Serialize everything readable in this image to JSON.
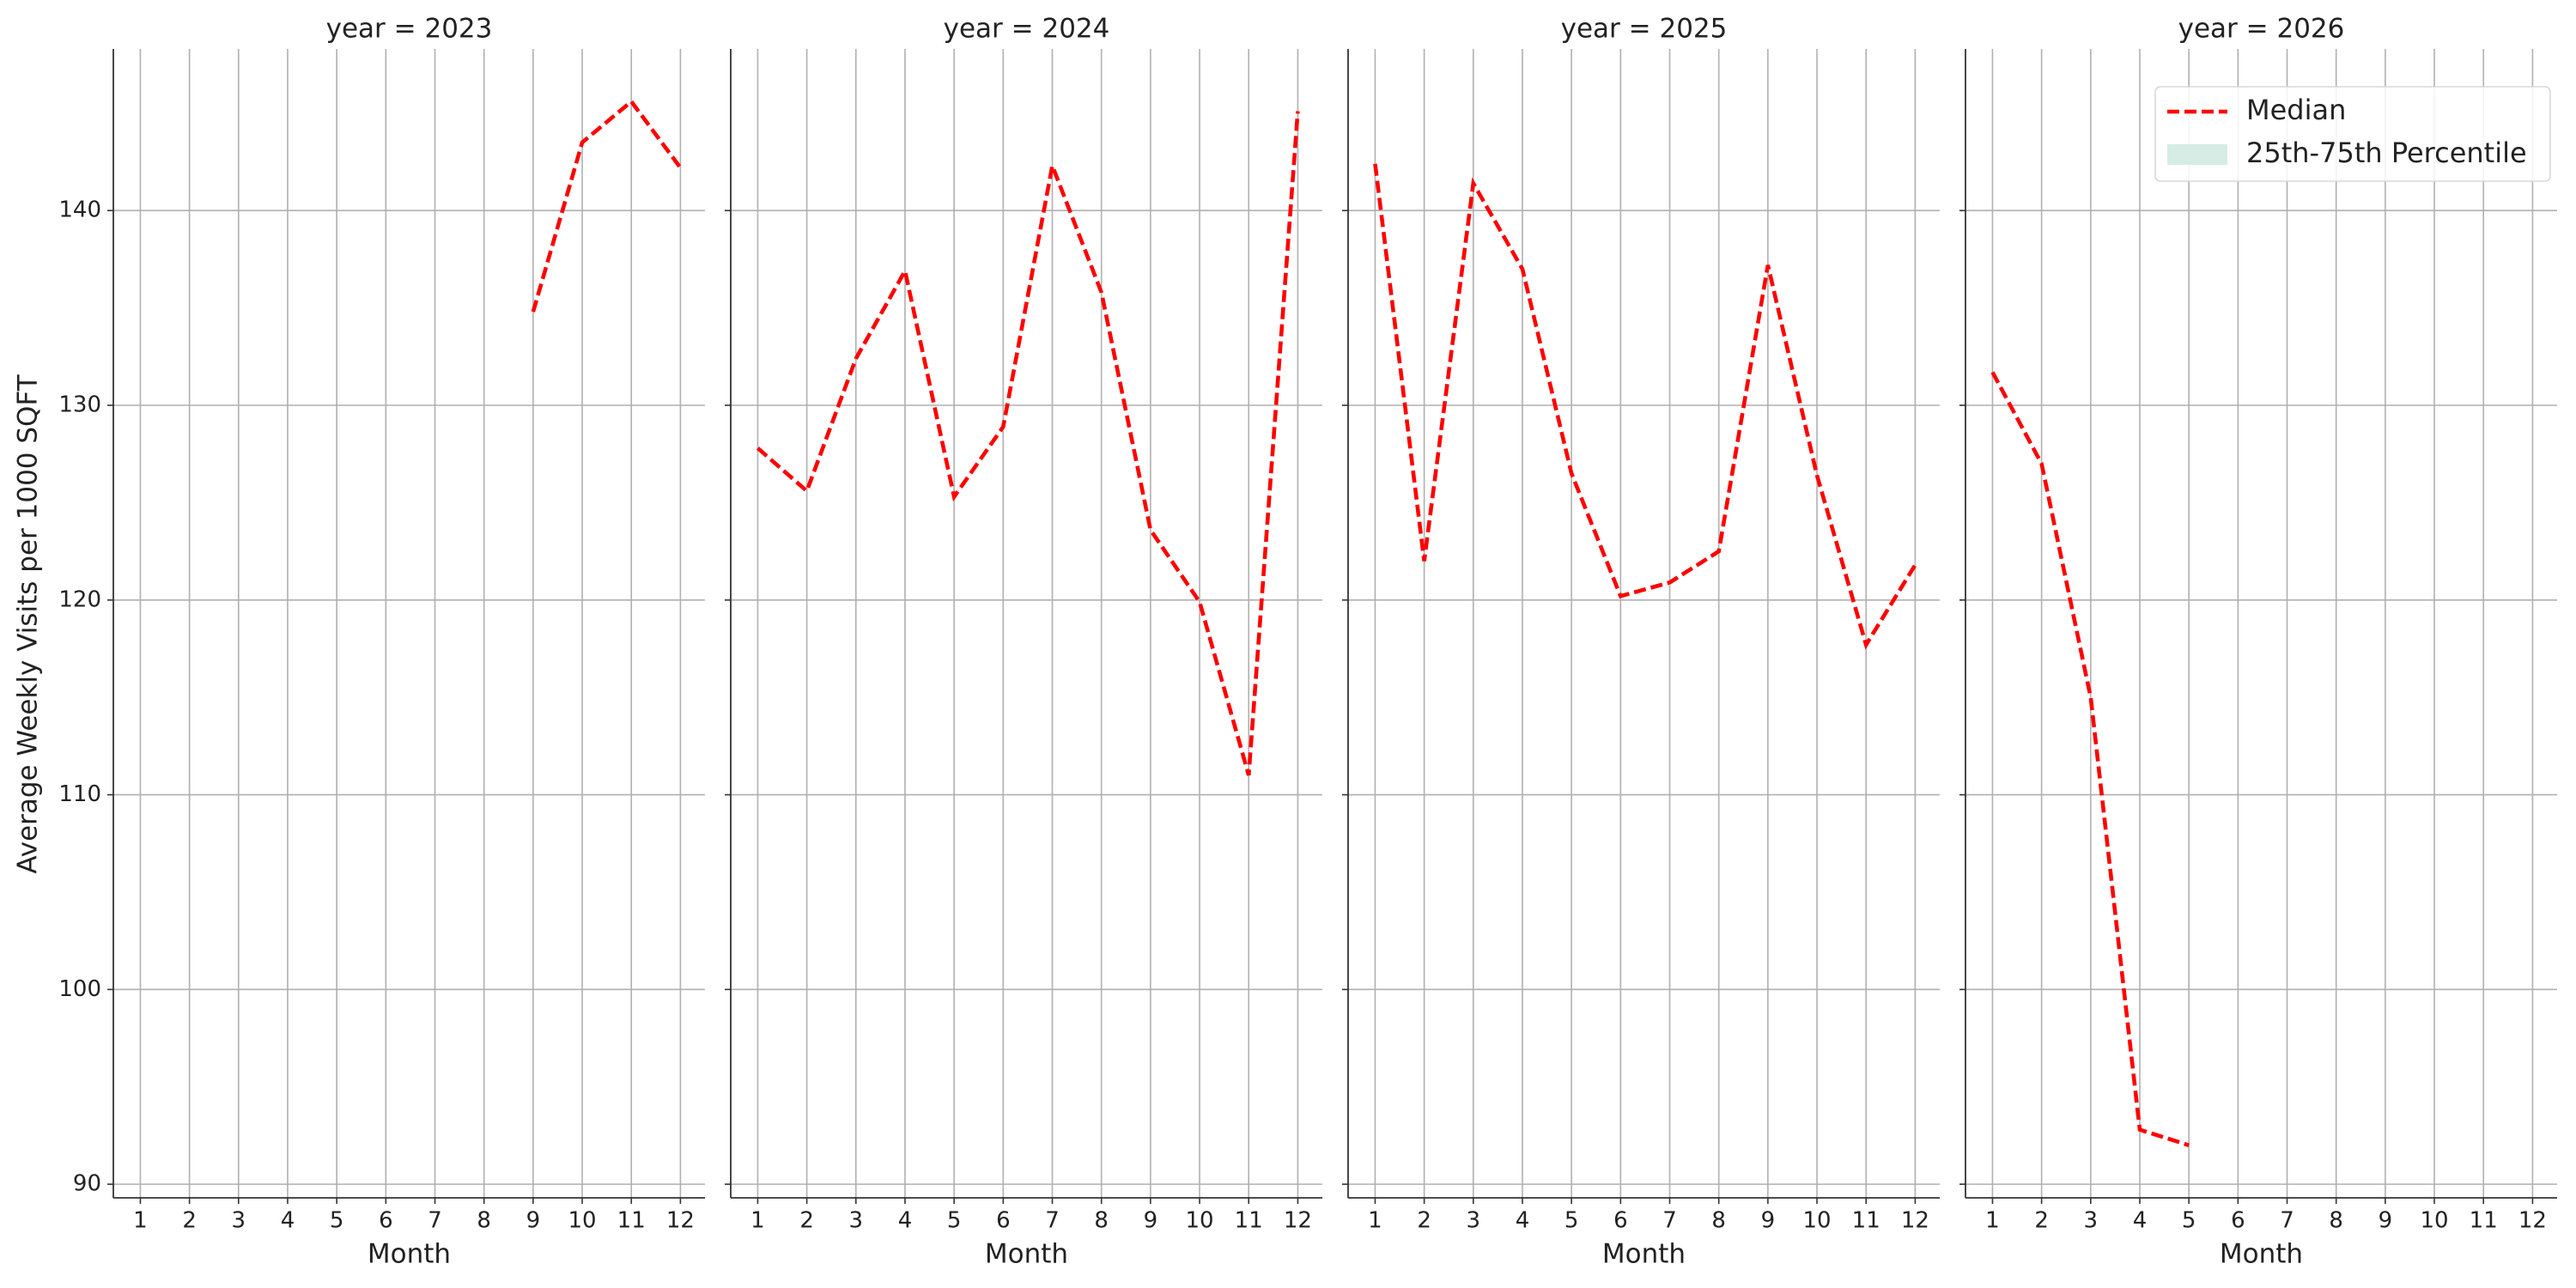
{
  "chart_data": [
    {
      "type": "line",
      "title": "year = 2023",
      "xlabel": "Month",
      "ylabel": "Average Weekly Visits per 1000 SQFT",
      "xlim": [
        0.45,
        12.5
      ],
      "xticks": [
        1,
        2,
        3,
        4,
        5,
        6,
        7,
        8,
        9,
        10,
        11,
        12
      ],
      "ylim": [
        89.3,
        148.3
      ],
      "yticks": [
        90,
        100,
        110,
        120,
        130,
        140
      ],
      "grid": true,
      "series": [
        {
          "color": "#ff0000",
          "x": [
            9,
            10,
            11,
            12
          ],
          "values": [
            134.8,
            143.5,
            145.6,
            142.2
          ]
        }
      ]
    },
    {
      "type": "line",
      "title": "year = 2024",
      "xlabel": "Month",
      "xlim": [
        0.45,
        12.5
      ],
      "xticks": [
        1,
        2,
        3,
        4,
        5,
        6,
        7,
        8,
        9,
        10,
        11,
        12
      ],
      "ylim": [
        89.3,
        148.3
      ],
      "yticks": [
        90,
        100,
        110,
        120,
        130,
        140
      ],
      "grid": true,
      "series": [
        {
          "color": "#ff0000",
          "x": [
            1,
            2,
            3,
            4,
            5,
            6,
            7,
            8,
            9,
            10,
            11,
            12
          ],
          "values": [
            127.8,
            125.6,
            132.4,
            136.9,
            125.3,
            128.9,
            142.3,
            135.8,
            123.6,
            119.9,
            111.0,
            145.1
          ]
        }
      ]
    },
    {
      "type": "line",
      "title": "year = 2025",
      "xlabel": "Month",
      "xlim": [
        0.45,
        12.5
      ],
      "xticks": [
        1,
        2,
        3,
        4,
        5,
        6,
        7,
        8,
        9,
        10,
        11,
        12
      ],
      "ylim": [
        89.3,
        148.3
      ],
      "yticks": [
        90,
        100,
        110,
        120,
        130,
        140
      ],
      "grid": true,
      "series": [
        {
          "color": "#ff0000",
          "x": [
            1,
            2,
            3,
            4,
            5,
            6,
            7,
            8,
            9,
            10,
            11,
            12
          ],
          "values": [
            142.4,
            122.0,
            141.4,
            137.0,
            126.5,
            120.2,
            120.9,
            122.5,
            137.2,
            126.4,
            117.7,
            121.8
          ]
        }
      ]
    },
    {
      "type": "line",
      "title": "year = 2026",
      "xlabel": "Month",
      "xlim": [
        0.45,
        12.5
      ],
      "xticks": [
        1,
        2,
        3,
        4,
        5,
        6,
        7,
        8,
        9,
        10,
        11,
        12
      ],
      "ylim": [
        89.3,
        148.3
      ],
      "yticks": [
        90,
        100,
        110,
        120,
        130,
        140
      ],
      "grid": true,
      "series": [
        {
          "color": "#ff0000",
          "x": [
            1,
            2,
            3,
            4,
            5
          ],
          "values": [
            131.7,
            127.0,
            115.0,
            92.8,
            92.0
          ]
        }
      ],
      "legend": {
        "loc": "upper right",
        "entries": [
          {
            "name": "Median",
            "color": "#ff0000",
            "style": "dashed"
          },
          {
            "name": "25th-75th Percentile",
            "color": "#d5ede4",
            "style": "band"
          }
        ]
      }
    }
  ],
  "sharey": true
}
